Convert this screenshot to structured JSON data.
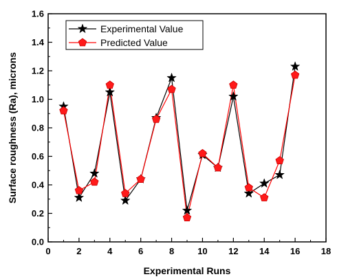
{
  "chart_data": {
    "type": "line",
    "title": "",
    "xlabel": "Experimental Runs",
    "ylabel": "Surface roughness (Ra), microns",
    "xlim": [
      0,
      18
    ],
    "ylim": [
      0.0,
      1.6
    ],
    "x_ticks": [
      "0",
      "2",
      "4",
      "6",
      "8",
      "10",
      "12",
      "14",
      "16",
      "18"
    ],
    "y_ticks": [
      "0.0",
      "0.2",
      "0.4",
      "0.6",
      "0.8",
      "1.0",
      "1.2",
      "1.4",
      "1.6"
    ],
    "grid": false,
    "legend_position": "top-left",
    "x": [
      1,
      2,
      3,
      4,
      5,
      6,
      7,
      8,
      9,
      10,
      11,
      12,
      13,
      14,
      15,
      16
    ],
    "series": [
      {
        "name": "Experimental Value",
        "marker": "star",
        "color": "#000000",
        "values": [
          0.95,
          0.31,
          0.48,
          1.05,
          0.29,
          0.44,
          0.87,
          1.15,
          0.22,
          0.61,
          0.52,
          1.02,
          0.34,
          0.41,
          0.47,
          1.23
        ]
      },
      {
        "name": "Predicted Value",
        "marker": "pentagon",
        "color": "#ff0000",
        "values": [
          0.92,
          0.36,
          0.42,
          1.1,
          0.34,
          0.44,
          0.86,
          1.07,
          0.17,
          0.62,
          0.52,
          1.1,
          0.38,
          0.31,
          0.57,
          1.17
        ]
      }
    ]
  }
}
